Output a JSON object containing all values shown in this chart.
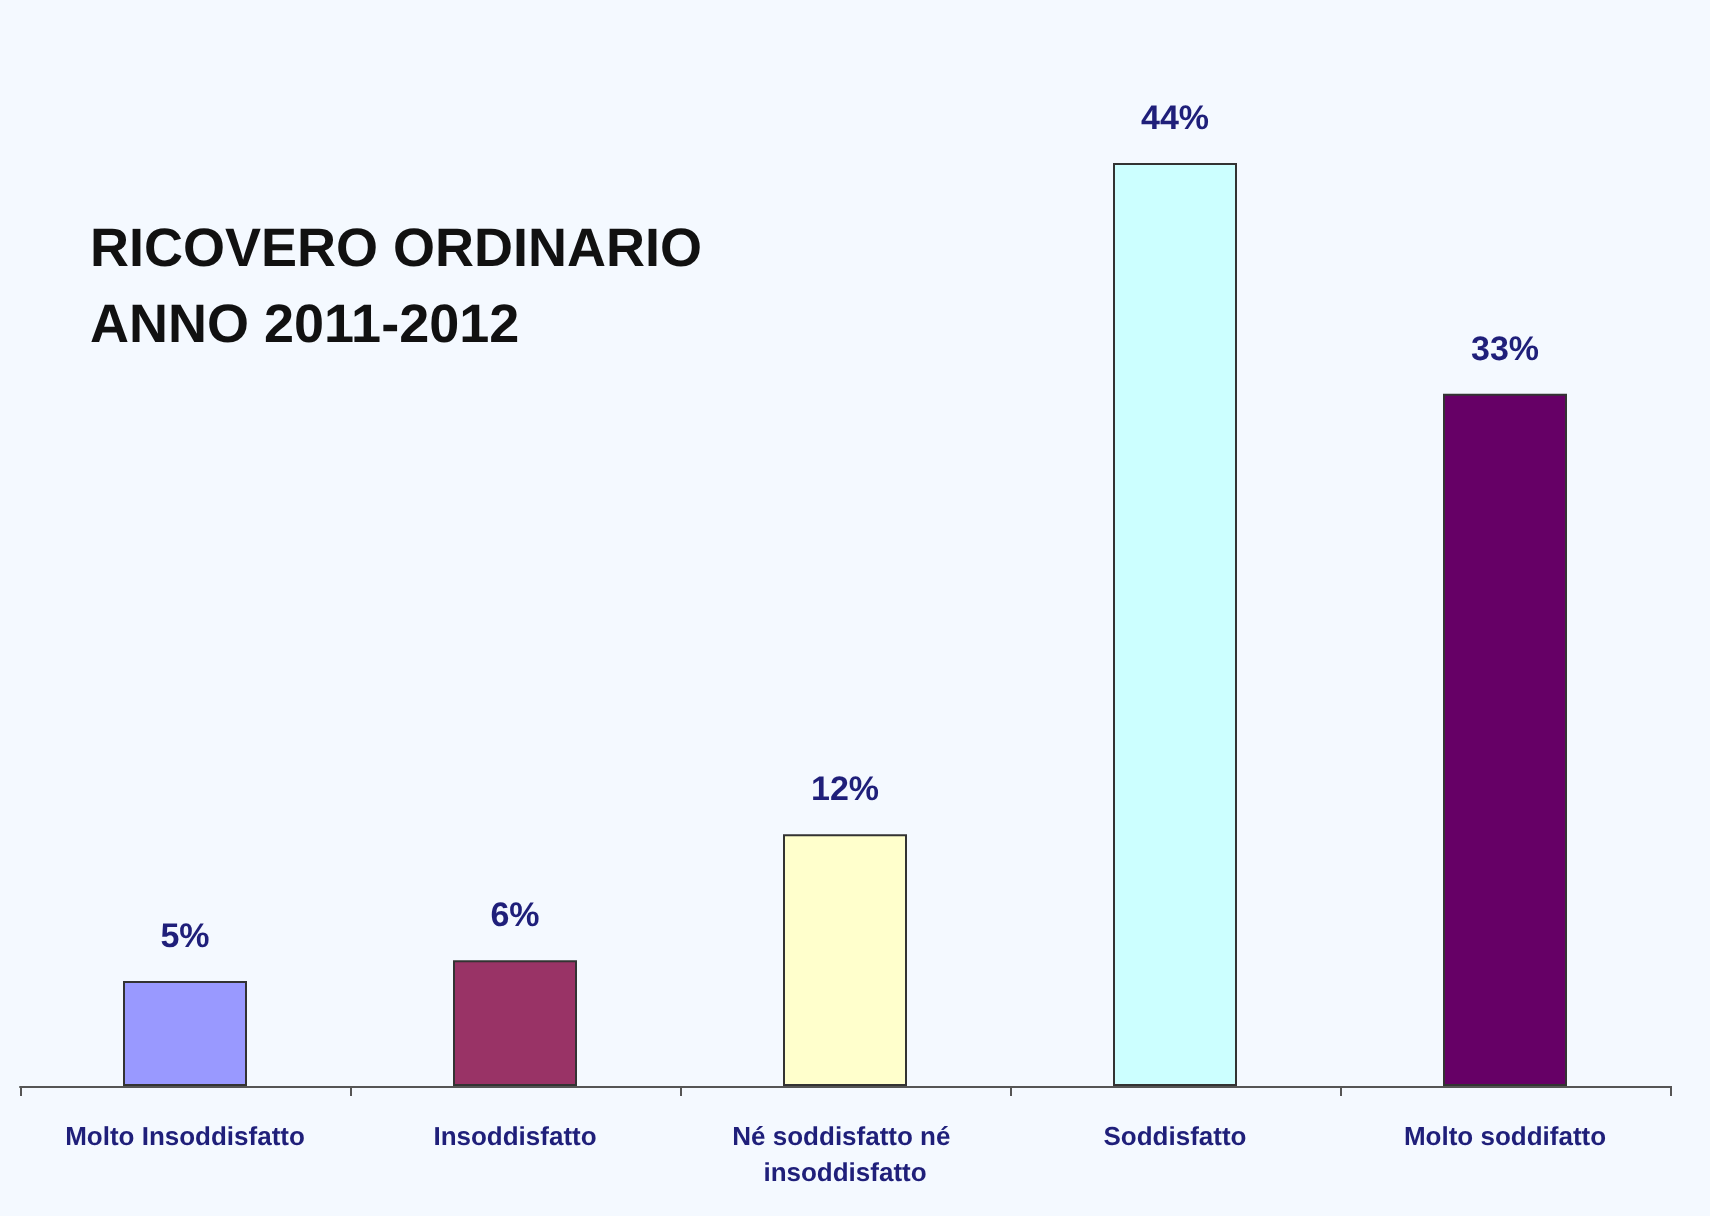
{
  "chart_data": {
    "type": "bar",
    "title": "RICOVERO ORDINARIO\nANNO 2011-2012",
    "categories": [
      "Molto Insoddisfatto",
      "Insoddisfatto",
      "Né soddisfatto né insoddisfatto",
      "Soddisfatto",
      "Molto soddifatto"
    ],
    "values": [
      5,
      6,
      12,
      44,
      33
    ],
    "colors": [
      "#9999ff",
      "#993366",
      "#ffffcc",
      "#ccffff",
      "#660066"
    ],
    "value_labels": [
      "5%",
      "6%",
      "12%",
      "44%",
      "33%"
    ]
  }
}
